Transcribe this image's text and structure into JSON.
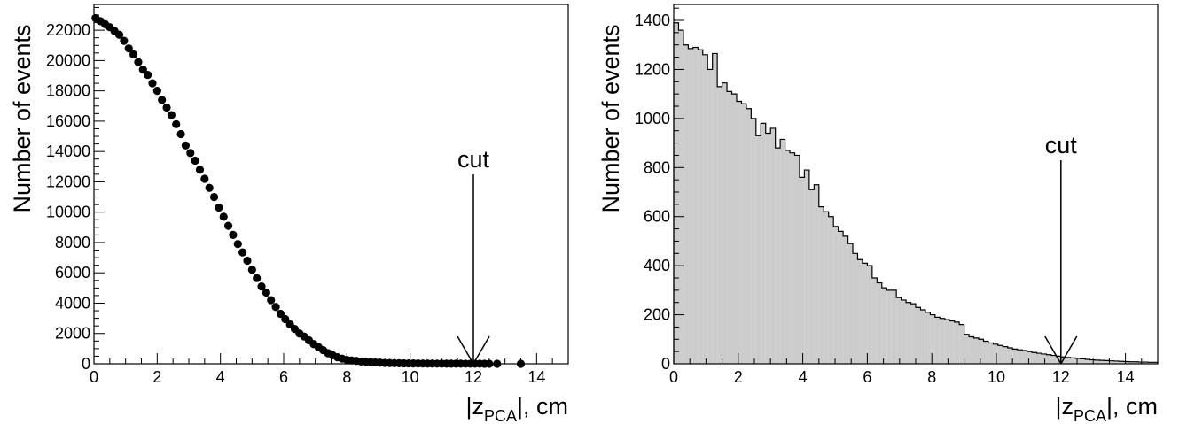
{
  "chart_data": [
    {
      "type": "scatter",
      "xlabel": {
        "pre": "|z",
        "sub": "PCA",
        "post": "|, cm"
      },
      "ylabel": "Number of events",
      "xlim": [
        0,
        15
      ],
      "ylim": [
        0,
        23700
      ],
      "xticks": [
        "0",
        "2",
        "4",
        "6",
        "8",
        "10",
        "12",
        "14"
      ],
      "yticks": [
        "0",
        "2000",
        "4000",
        "6000",
        "8000",
        "10000",
        "12000",
        "14000",
        "16000",
        "18000",
        "20000",
        "22000"
      ],
      "annotation": {
        "text": "cut",
        "x": 12
      },
      "x": [
        0.05,
        0.2,
        0.35,
        0.5,
        0.65,
        0.8,
        0.95,
        1.1,
        1.25,
        1.4,
        1.55,
        1.7,
        1.85,
        2.0,
        2.15,
        2.3,
        2.45,
        2.6,
        2.75,
        2.9,
        3.05,
        3.2,
        3.35,
        3.5,
        3.65,
        3.8,
        3.95,
        4.1,
        4.25,
        4.4,
        4.55,
        4.7,
        4.85,
        5.0,
        5.15,
        5.3,
        5.45,
        5.6,
        5.75,
        5.9,
        6.05,
        6.2,
        6.35,
        6.5,
        6.65,
        6.8,
        6.95,
        7.1,
        7.25,
        7.4,
        7.55,
        7.7,
        7.85,
        8.0,
        8.15,
        8.3,
        8.45,
        8.6,
        8.75,
        8.9,
        9.05,
        9.2,
        9.35,
        9.5,
        9.65,
        9.8,
        9.95,
        10.1,
        10.25,
        10.4,
        10.55,
        10.7,
        10.85,
        11.0,
        11.15,
        11.3,
        11.45,
        11.6,
        11.75,
        11.9,
        12.05,
        12.2,
        12.35,
        12.5,
        12.75,
        13.5
      ],
      "y": [
        22800,
        22600,
        22400,
        22200,
        21950,
        21700,
        21300,
        20800,
        20400,
        19900,
        19400,
        19050,
        18500,
        18000,
        17400,
        16900,
        16400,
        15800,
        15150,
        14400,
        13900,
        13400,
        12800,
        12200,
        11600,
        11000,
        10300,
        9700,
        9100,
        8500,
        7900,
        7350,
        6800,
        6200,
        5650,
        5100,
        4700,
        4200,
        3750,
        3300,
        2950,
        2600,
        2300,
        2000,
        1800,
        1550,
        1300,
        1100,
        900,
        700,
        560,
        430,
        340,
        260,
        220,
        190,
        150,
        130,
        110,
        90,
        75,
        60,
        50,
        40,
        35,
        30,
        25,
        22,
        20,
        18,
        16,
        14,
        12,
        10,
        9,
        8,
        7,
        6,
        5,
        5,
        4,
        4,
        3,
        3,
        2,
        2
      ]
    },
    {
      "type": "histogram",
      "xlabel": {
        "pre": "|z",
        "sub": "PCA",
        "post": "|, cm"
      },
      "ylabel": "Number of events",
      "xlim": [
        0,
        15
      ],
      "ylim": [
        0,
        1465
      ],
      "xticks": [
        "0",
        "2",
        "4",
        "6",
        "8",
        "10",
        "12",
        "14"
      ],
      "yticks": [
        "0",
        "200",
        "400",
        "600",
        "800",
        "1000",
        "1200",
        "1400"
      ],
      "annotation": {
        "text": "cut",
        "x": 12
      },
      "fill": "#cccccc",
      "bin_width": 0.15,
      "values": [
        1390,
        1360,
        1300,
        1285,
        1290,
        1280,
        1260,
        1200,
        1265,
        1130,
        1145,
        1110,
        1100,
        1070,
        1060,
        1040,
        1000,
        930,
        980,
        940,
        960,
        880,
        915,
        870,
        860,
        850,
        760,
        790,
        710,
        730,
        640,
        620,
        600,
        560,
        540,
        520,
        490,
        450,
        425,
        410,
        400,
        350,
        330,
        310,
        300,
        300,
        270,
        260,
        250,
        245,
        230,
        220,
        210,
        200,
        190,
        185,
        180,
        175,
        170,
        160,
        120,
        110,
        105,
        100,
        92,
        85,
        80,
        75,
        70,
        65,
        60,
        57,
        54,
        50,
        46,
        43,
        40,
        37,
        34,
        31,
        28,
        26,
        24,
        22,
        20,
        18,
        16,
        15,
        14,
        13,
        12,
        11,
        10,
        9,
        8,
        8,
        7,
        7,
        6,
        6
      ]
    }
  ]
}
